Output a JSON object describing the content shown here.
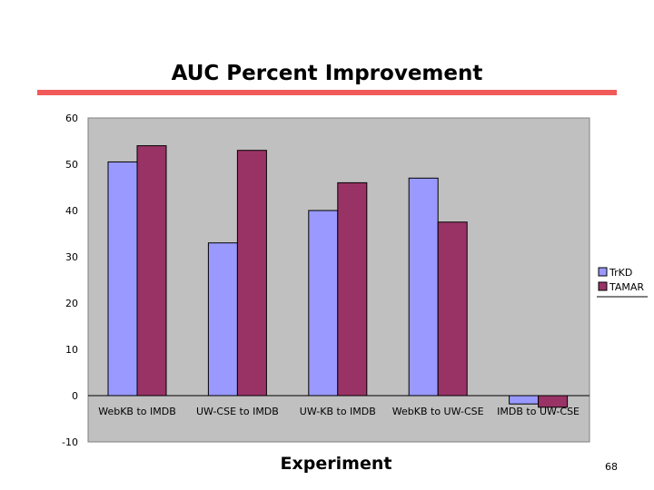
{
  "slide": {
    "title": "AUC Percent Improvement",
    "page_number": "68"
  },
  "chart_data": {
    "type": "bar",
    "title": "",
    "xlabel": "Experiment",
    "ylabel": "",
    "ylim": [
      -10,
      60
    ],
    "yticks": [
      60,
      50,
      40,
      30,
      20,
      10,
      0,
      -10
    ],
    "grid": false,
    "legend_position": "right",
    "categories": [
      "WebKB to IMDB",
      "UW-CSE to IMDB",
      "UW-KB to IMDB",
      "WebKB to UW-CSE",
      "IMDB to UW-CSE"
    ],
    "series": [
      {
        "name": "TrKD",
        "color": "#9999ff",
        "values": [
          50.5,
          33,
          40,
          47,
          -1.8
        ]
      },
      {
        "name": "TAMAR",
        "color": "#993366",
        "values": [
          54,
          53,
          46,
          37.5,
          -2.5
        ]
      }
    ],
    "plot_background": "#c0c0c0"
  }
}
